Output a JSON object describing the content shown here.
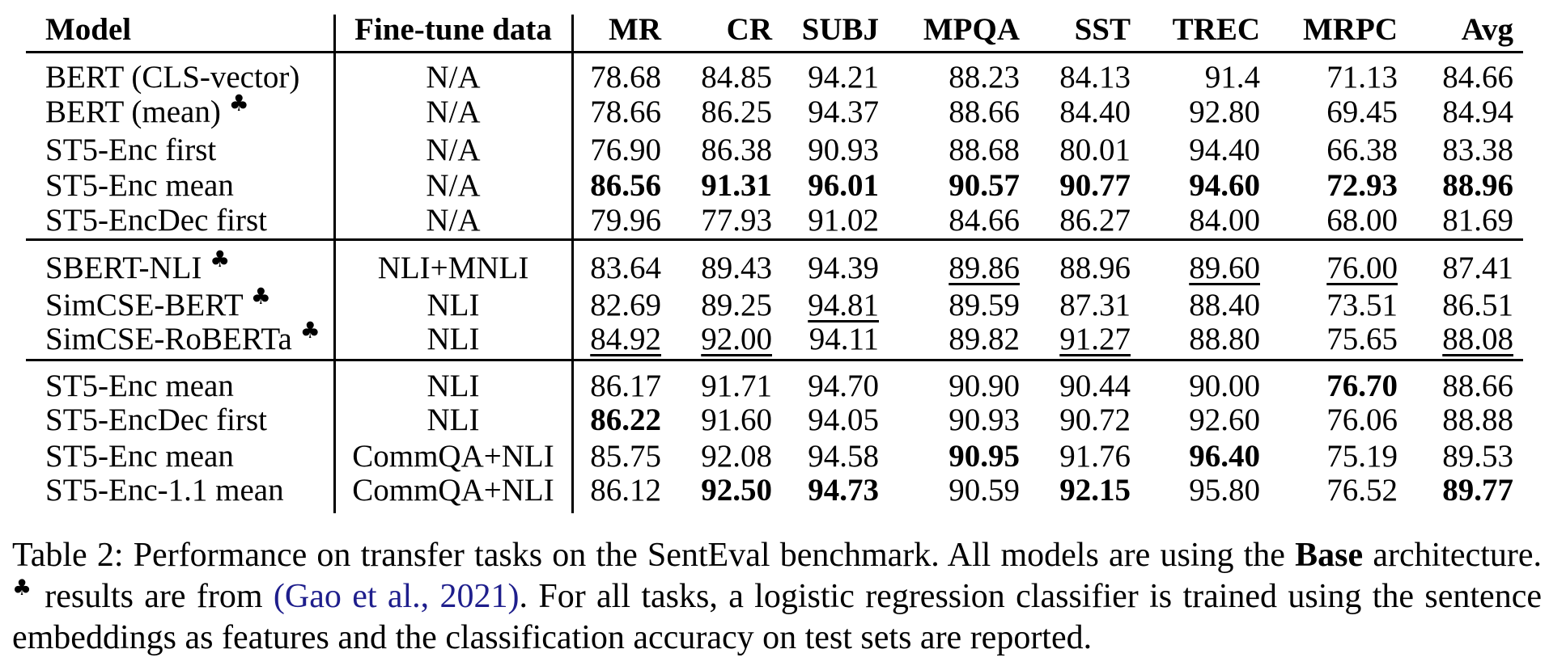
{
  "table": {
    "columns": [
      "Model",
      "Fine-tune data",
      "MR",
      "CR",
      "SUBJ",
      "MPQA",
      "SST",
      "TREC",
      "MRPC",
      "Avg"
    ],
    "blocks": [
      {
        "rows": [
          {
            "model": "BERT (CLS-vector)",
            "club": false,
            "finetune": "N/A",
            "cells": [
              {
                "v": "78.68"
              },
              {
                "v": "84.85"
              },
              {
                "v": "94.21"
              },
              {
                "v": "88.23"
              },
              {
                "v": "84.13"
              },
              {
                "v": "91.4"
              },
              {
                "v": "71.13"
              },
              {
                "v": "84.66"
              }
            ]
          },
          {
            "model": "BERT (mean)",
            "club": true,
            "finetune": "N/A",
            "cells": [
              {
                "v": "78.66"
              },
              {
                "v": "86.25"
              },
              {
                "v": "94.37"
              },
              {
                "v": "88.66"
              },
              {
                "v": "84.40"
              },
              {
                "v": "92.80"
              },
              {
                "v": "69.45"
              },
              {
                "v": "84.94"
              }
            ]
          },
          {
            "model": "ST5-Enc first",
            "club": false,
            "finetune": "N/A",
            "cells": [
              {
                "v": "76.90"
              },
              {
                "v": "86.38"
              },
              {
                "v": "90.93"
              },
              {
                "v": "88.68"
              },
              {
                "v": "80.01"
              },
              {
                "v": "94.40"
              },
              {
                "v": "66.38"
              },
              {
                "v": "83.38"
              }
            ]
          },
          {
            "model": "ST5-Enc mean",
            "club": false,
            "finetune": "N/A",
            "cells": [
              {
                "v": "86.56",
                "b": true
              },
              {
                "v": "91.31",
                "b": true
              },
              {
                "v": "96.01",
                "b": true
              },
              {
                "v": "90.57",
                "b": true
              },
              {
                "v": "90.77",
                "b": true
              },
              {
                "v": "94.60",
                "b": true
              },
              {
                "v": "72.93",
                "b": true
              },
              {
                "v": "88.96",
                "b": true
              }
            ]
          },
          {
            "model": "ST5-EncDec first",
            "club": false,
            "finetune": "N/A",
            "cells": [
              {
                "v": "79.96"
              },
              {
                "v": "77.93"
              },
              {
                "v": "91.02"
              },
              {
                "v": "84.66"
              },
              {
                "v": "86.27"
              },
              {
                "v": "84.00"
              },
              {
                "v": "68.00"
              },
              {
                "v": "81.69"
              }
            ]
          }
        ]
      },
      {
        "rows": [
          {
            "model": "SBERT-NLI",
            "club": true,
            "finetune": "NLI+MNLI",
            "cells": [
              {
                "v": "83.64"
              },
              {
                "v": "89.43"
              },
              {
                "v": "94.39"
              },
              {
                "v": "89.86",
                "u": true
              },
              {
                "v": "88.96"
              },
              {
                "v": "89.60",
                "u": true
              },
              {
                "v": "76.00",
                "u": true
              },
              {
                "v": "87.41"
              }
            ]
          },
          {
            "model": "SimCSE-BERT",
            "club": true,
            "finetune": "NLI",
            "cells": [
              {
                "v": "82.69"
              },
              {
                "v": "89.25"
              },
              {
                "v": "94.81",
                "u": true
              },
              {
                "v": "89.59"
              },
              {
                "v": "87.31"
              },
              {
                "v": "88.40"
              },
              {
                "v": "73.51"
              },
              {
                "v": "86.51"
              }
            ]
          },
          {
            "model": "SimCSE-RoBERTa",
            "club": true,
            "finetune": "NLI",
            "cells": [
              {
                "v": "84.92",
                "u": true
              },
              {
                "v": "92.00",
                "u": true
              },
              {
                "v": "94.11"
              },
              {
                "v": "89.82"
              },
              {
                "v": "91.27",
                "u": true
              },
              {
                "v": "88.80"
              },
              {
                "v": "75.65"
              },
              {
                "v": "88.08",
                "u": true
              }
            ]
          }
        ]
      },
      {
        "rows": [
          {
            "model": "ST5-Enc mean",
            "club": false,
            "finetune": "NLI",
            "cells": [
              {
                "v": "86.17"
              },
              {
                "v": "91.71"
              },
              {
                "v": "94.70"
              },
              {
                "v": "90.90"
              },
              {
                "v": "90.44"
              },
              {
                "v": "90.00"
              },
              {
                "v": "76.70",
                "b": true
              },
              {
                "v": "88.66"
              }
            ]
          },
          {
            "model": "ST5-EncDec first",
            "club": false,
            "finetune": "NLI",
            "cells": [
              {
                "v": "86.22",
                "b": true
              },
              {
                "v": "91.60"
              },
              {
                "v": "94.05"
              },
              {
                "v": "90.93"
              },
              {
                "v": "90.72"
              },
              {
                "v": "92.60"
              },
              {
                "v": "76.06"
              },
              {
                "v": "88.88"
              }
            ]
          },
          {
            "model": "ST5-Enc mean",
            "club": false,
            "finetune": "CommQA+NLI",
            "cells": [
              {
                "v": "85.75"
              },
              {
                "v": "92.08"
              },
              {
                "v": "94.58"
              },
              {
                "v": "90.95",
                "b": true
              },
              {
                "v": "91.76"
              },
              {
                "v": "96.40",
                "b": true
              },
              {
                "v": "75.19"
              },
              {
                "v": "89.53"
              }
            ]
          },
          {
            "model": "ST5-Enc-1.1 mean",
            "club": false,
            "finetune": "CommQA+NLI",
            "cells": [
              {
                "v": "86.12"
              },
              {
                "v": "92.50",
                "b": true
              },
              {
                "v": "94.73",
                "b": true
              },
              {
                "v": "90.59"
              },
              {
                "v": "92.15",
                "b": true
              },
              {
                "v": "95.80"
              },
              {
                "v": "76.52"
              },
              {
                "v": "89.77",
                "b": true
              }
            ]
          }
        ]
      }
    ]
  },
  "caption": {
    "club": "♣",
    "line1_prefix": "Table 2: Performance on transfer tasks on the SentEval benchmark.  All models are using the ",
    "line1_bold": "Base",
    "line1_suffix": " architecture.",
    "line2_pre": " results are from ",
    "line2_link": "(Gao et al., 2021)",
    "line2_suffix": ".  For all tasks, a logistic regression classifier is trained using the sentence",
    "line3": "embeddings as features and the classification accuracy on test sets are reported.",
    "link_color": "#1E1E8C"
  }
}
